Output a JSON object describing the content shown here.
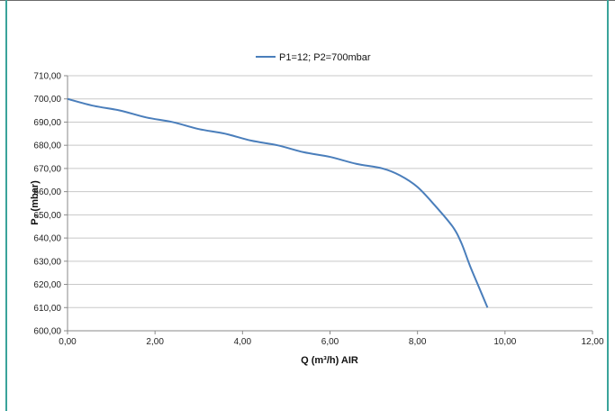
{
  "colors": {
    "series": "#4a7ebb",
    "grid": "#c8c8c8",
    "axis": "#8a8a8a",
    "frame_accent": "#3aa39a"
  },
  "chart_data": {
    "type": "line",
    "title": "",
    "xlabel": "Q (m³/h) AIR",
    "ylabel": "P₂ (mbar)",
    "xlim": [
      0,
      12
    ],
    "ylim": [
      600,
      710
    ],
    "x_ticks": [
      "0,00",
      "2,00",
      "4,00",
      "6,00",
      "8,00",
      "10,00",
      "12,00"
    ],
    "y_ticks": [
      "600,00",
      "610,00",
      "620,00",
      "630,00",
      "640,00",
      "650,00",
      "660,00",
      "670,00",
      "680,00",
      "690,00",
      "700,00",
      "710,00"
    ],
    "legend": "top-center",
    "grid": "horizontal",
    "series": [
      {
        "name": "P1=12; P2=700mbar",
        "x": [
          0,
          0.6,
          1.2,
          1.8,
          2.4,
          3.0,
          3.6,
          4.2,
          4.8,
          5.4,
          6.0,
          6.6,
          7.2,
          7.6,
          8.0,
          8.4,
          8.8,
          9.0,
          9.2,
          9.4,
          9.6
        ],
        "y": [
          700,
          697,
          695,
          692,
          690,
          687,
          685,
          682,
          680,
          677,
          675,
          672,
          670,
          667,
          662,
          654,
          645,
          638,
          628,
          619,
          610
        ]
      }
    ]
  }
}
